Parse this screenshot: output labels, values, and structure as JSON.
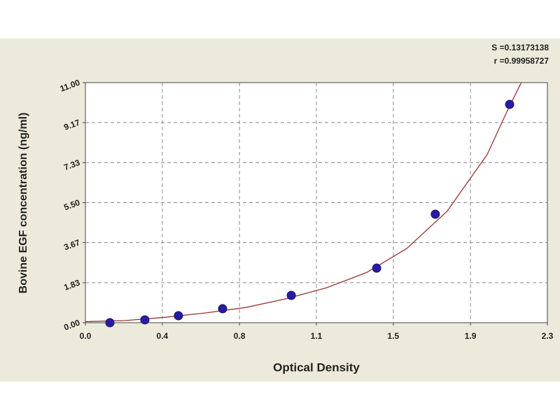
{
  "chart_data": {
    "type": "scatter",
    "x_label": "Optical Density",
    "y_label": "Bovine EGF concentration (ng/ml)",
    "annotations": [
      "S =0.13173138",
      "r =0.99958727"
    ],
    "x": [
      0.122,
      0.296,
      0.463,
      0.683,
      1.025,
      1.45,
      1.742,
      2.112
    ],
    "values": [
      0,
      0.13,
      0.32,
      0.64,
      1.25,
      2.5,
      4.97,
      10.0
    ],
    "color": "#2a1aa8",
    "curve": {
      "x": [
        0,
        0.2,
        0.4,
        0.6,
        0.8,
        1.0,
        1.2,
        1.4,
        1.6,
        1.8,
        2.0,
        2.1,
        2.17
      ],
      "values": [
        0.05,
        0.1,
        0.25,
        0.45,
        0.7,
        1.1,
        1.6,
        2.3,
        3.4,
        5.1,
        7.7,
        9.7,
        11.0
      ],
      "color": "#993333"
    },
    "xlim": [
      0,
      2.3
    ],
    "ylim": [
      0,
      11
    ],
    "xticks": [
      {
        "value": 0,
        "label": "0.0"
      },
      {
        "value": 0.383,
        "label": "0.4"
      },
      {
        "value": 0.767,
        "label": "0.8"
      },
      {
        "value": 1.15,
        "label": "1.1"
      },
      {
        "value": 1.533,
        "label": "1.5"
      },
      {
        "value": 1.917,
        "label": "1.9"
      },
      2.3
    ],
    "yticks": [
      {
        "value": 0,
        "label": "0.00"
      },
      1.83,
      3.67,
      {
        "value": 5.5,
        "label": "5.50"
      },
      7.33,
      9.17,
      {
        "value": 11,
        "label": "11.00"
      }
    ],
    "grid": true
  }
}
